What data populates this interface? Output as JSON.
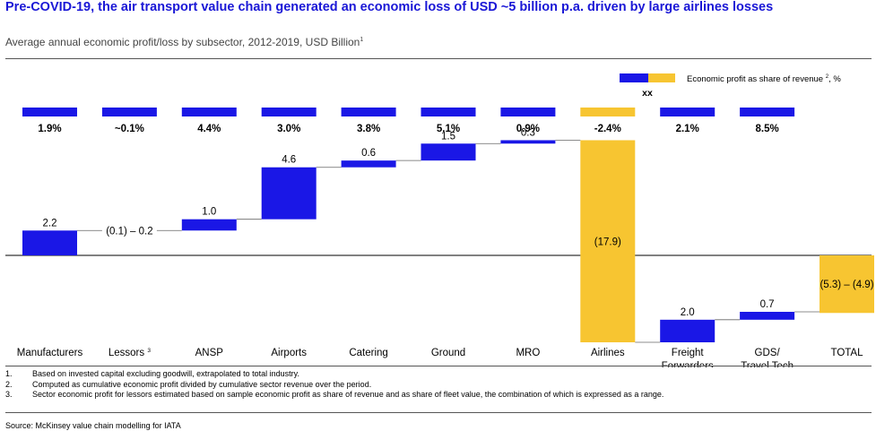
{
  "title": "Pre-COVID-19, the air transport value chain generated an economic loss of USD ~5 billion p.a. driven by large airlines losses",
  "subtitle": "Average annual economic profit/loss by subsector, 2012-2019, USD Billion",
  "subtitle_footnote": "1",
  "legend": {
    "label": "Economic profit as share of revenue",
    "footnote": "2",
    "suffix": ", %",
    "marker": "xx"
  },
  "colors": {
    "blue": "#1a17e6",
    "yellow": "#f7c531",
    "connector": "#666666",
    "baseline": "#000000",
    "title": "#1a17d6"
  },
  "chart_data": {
    "type": "waterfall",
    "categories": [
      "Manufacturers",
      "Lessors",
      "ANSP",
      "Airports",
      "Catering",
      "Ground",
      "MRO",
      "Airlines",
      "Freight Forwarders",
      "GDS/ Travel Tech",
      "TOTAL"
    ],
    "category_footnotes": [
      "",
      "3",
      "",
      "",
      "",
      "",
      "",
      "",
      "",
      "",
      ""
    ],
    "values": [
      2.2,
      0.0,
      1.0,
      4.6,
      0.6,
      1.5,
      0.3,
      -17.9,
      2.0,
      0.7,
      -5.1
    ],
    "value_labels": [
      "2.2",
      "(0.1) – 0.2",
      "1.0",
      "4.6",
      "0.6",
      "1.5",
      "0.3",
      "(17.9)",
      "2.0",
      "0.7",
      "(5.3) – (4.9)"
    ],
    "bar_colors": [
      "blue",
      "blue",
      "blue",
      "blue",
      "blue",
      "blue",
      "blue",
      "yellow",
      "blue",
      "blue",
      "yellow"
    ],
    "share_of_revenue": [
      "1.9%",
      "~0.1%",
      "4.4%",
      "3.0%",
      "3.8%",
      "5.1%",
      "0.9%",
      "-2.4%",
      "2.1%",
      "8.5%"
    ],
    "share_colors": [
      "blue",
      "blue",
      "blue",
      "blue",
      "blue",
      "blue",
      "blue",
      "yellow",
      "blue",
      "blue"
    ],
    "last_is_total": true
  },
  "footnotes": [
    {
      "num": "1.",
      "text": "Based on invested capital excluding goodwill, extrapolated to total industry."
    },
    {
      "num": "2.",
      "text": "Computed as cumulative economic profit divided by cumulative sector revenue over the period."
    },
    {
      "num": "3.",
      "text": "Sector economic profit for lessors estimated based on sample economic profit as share of revenue and as share of fleet value, the combination of which is expressed as a range."
    }
  ],
  "source": "Source: McKinsey value chain modelling for IATA"
}
